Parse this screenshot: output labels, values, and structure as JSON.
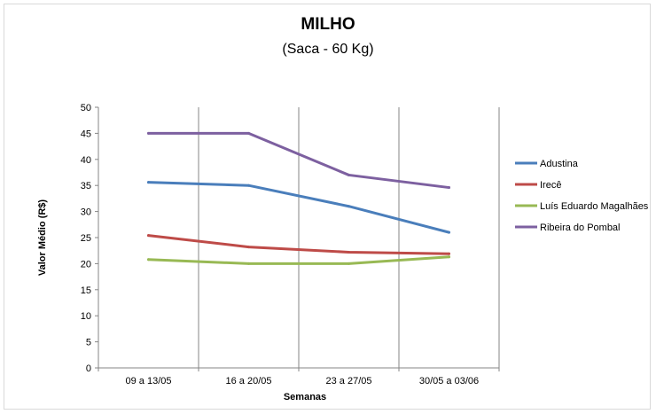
{
  "chart_data": {
    "type": "line",
    "title": "MILHO",
    "subtitle": "(Saca - 60 Kg)",
    "xlabel": "Semanas",
    "ylabel": "Valor Médio (R$)",
    "categories": [
      "09 a 13/05",
      "16 a 20/05",
      "23 a 27/05",
      "30/05 a 03/06"
    ],
    "ylim": [
      0,
      50
    ],
    "yticks": [
      0,
      5,
      10,
      15,
      20,
      25,
      30,
      35,
      40,
      45,
      50
    ],
    "grid": "vertical",
    "legend": "right",
    "series": [
      {
        "name": "Adustina",
        "color": "#4a7ebb",
        "values": [
          35.6,
          35.0,
          31.0,
          26.0
        ]
      },
      {
        "name": "Irecê",
        "color": "#be4b48",
        "values": [
          25.4,
          23.2,
          22.2,
          21.9
        ]
      },
      {
        "name": "Luís Eduardo Magalhães",
        "color": "#98b954",
        "values": [
          20.8,
          20.0,
          20.0,
          21.3
        ]
      },
      {
        "name": "Ribeira do Pombal",
        "color": "#7d60a0",
        "values": [
          45.0,
          45.0,
          37.0,
          34.6
        ]
      }
    ]
  }
}
